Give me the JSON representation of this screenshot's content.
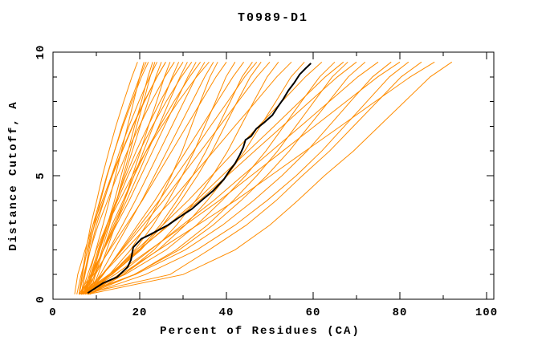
{
  "chart_data": {
    "type": "line",
    "title": "T0989-D1",
    "xlabel": "Percent of Residues (CA)",
    "ylabel": "Distance Cutoff, A",
    "xlim": [
      0,
      100
    ],
    "ylim": [
      0,
      10
    ],
    "grid": false,
    "legend": "none",
    "x_major_ticks": [
      0,
      20,
      40,
      60,
      80,
      100
    ],
    "x_minor_ticks": [
      10,
      30,
      50,
      70,
      90
    ],
    "y_major_ticks": [
      0,
      5,
      10
    ],
    "y_minor_ticks": [
      1,
      2,
      3,
      4,
      6,
      7,
      8,
      9
    ],
    "colors": {
      "model_lines": "#ff8c00",
      "highlight_line": "#000000",
      "frame": "#000000"
    },
    "cutoffs": [
      0.2,
      1,
      2,
      3,
      4,
      5,
      6,
      7,
      8,
      9,
      9.6
    ],
    "highlight_series": {
      "name": "selected-model",
      "points": [
        [
          8,
          0.25
        ],
        [
          11.5,
          0.65
        ],
        [
          14.8,
          0.9
        ],
        [
          17.2,
          1.3
        ],
        [
          18,
          1.6
        ],
        [
          18.5,
          2.1
        ],
        [
          20.4,
          2.45
        ],
        [
          22.2,
          2.6
        ],
        [
          26.5,
          3.0
        ],
        [
          29,
          3.3
        ],
        [
          32,
          3.65
        ],
        [
          34.6,
          4.05
        ],
        [
          37,
          4.4
        ],
        [
          39.4,
          4.85
        ],
        [
          40.7,
          5.2
        ],
        [
          42,
          5.5
        ],
        [
          43.1,
          5.85
        ],
        [
          43.9,
          6.15
        ],
        [
          44.4,
          6.45
        ],
        [
          45.7,
          6.6
        ],
        [
          46.9,
          6.9
        ],
        [
          48.7,
          7.15
        ],
        [
          50.6,
          7.45
        ],
        [
          51.9,
          7.8
        ],
        [
          53.1,
          8.1
        ],
        [
          54.3,
          8.45
        ],
        [
          55.6,
          8.75
        ],
        [
          56.9,
          9.1
        ],
        [
          58.3,
          9.35
        ],
        [
          59.5,
          9.55
        ]
      ]
    },
    "series": [
      {
        "xs": [
          6,
          6.7,
          7.6,
          8.7,
          10.1,
          11.4,
          12.9,
          14.5,
          16.3,
          18.2,
          19.5
        ]
      },
      {
        "xs": [
          5,
          5.7,
          7.4,
          9.2,
          11.4,
          13.5,
          15.9,
          18.3,
          21,
          24,
          26
        ]
      },
      {
        "xs": [
          6.5,
          7.3,
          8.3,
          9.5,
          11,
          12.5,
          14.2,
          15.9,
          17.9,
          20,
          21.5
        ]
      },
      {
        "xs": [
          7,
          8.4,
          9.9,
          11.5,
          13,
          14.4,
          15.8,
          17.2,
          18.6,
          20,
          21
        ]
      },
      {
        "xs": [
          6,
          6.8,
          7.9,
          9.2,
          10.8,
          12.4,
          14.2,
          16.1,
          18.2,
          20.4,
          22
        ]
      },
      {
        "xs": [
          7.5,
          9.1,
          10.8,
          12.5,
          14.2,
          15.7,
          17.3,
          18.8,
          20.4,
          21.9,
          23
        ]
      },
      {
        "xs": [
          8,
          9.6,
          11.3,
          13,
          14.7,
          16.2,
          17.8,
          19.3,
          20.9,
          22.4,
          23.5
        ]
      },
      {
        "xs": [
          6.5,
          7.4,
          8.6,
          10,
          11.8,
          13.5,
          15.4,
          17.5,
          19.8,
          22.3,
          24
        ]
      },
      {
        "xs": [
          7,
          8.8,
          10.8,
          12.8,
          14.7,
          16.5,
          18.3,
          20.1,
          21.9,
          23.7,
          25
        ]
      },
      {
        "xs": [
          5.5,
          6.5,
          8,
          9.6,
          11.7,
          13.7,
          16,
          18.4,
          21.1,
          24,
          26
        ]
      },
      {
        "xs": [
          8.5,
          10.4,
          12.4,
          14.4,
          16.5,
          18.3,
          20.2,
          22,
          23.9,
          25.7,
          27
        ]
      },
      {
        "xs": [
          6,
          7.1,
          8.6,
          10.4,
          12.6,
          14.8,
          17.2,
          19.9,
          22.7,
          25.8,
          28
        ]
      },
      {
        "xs": [
          7,
          9.2,
          11.6,
          14,
          16.5,
          18.7,
          20.9,
          23.1,
          25.3,
          27.5,
          29
        ]
      },
      {
        "xs": [
          8,
          9.1,
          10.6,
          12.4,
          14.6,
          16.8,
          19.2,
          21.9,
          24.7,
          27.8,
          30
        ]
      },
      {
        "xs": [
          6.5,
          9,
          11.6,
          14.3,
          17,
          19.5,
          21.9,
          24.4,
          26.8,
          29.3,
          31
        ]
      },
      {
        "xs": [
          7.5,
          8.7,
          10.4,
          12.4,
          14.9,
          17.3,
          20,
          22.9,
          26.1,
          29.6,
          32
        ]
      },
      {
        "xs": [
          6,
          8.7,
          11.7,
          14.6,
          17.6,
          20.3,
          23,
          25.7,
          28.4,
          31.1,
          33
        ]
      },
      {
        "xs": [
          8.5,
          9.8,
          11.6,
          13.6,
          16.2,
          18.7,
          21.5,
          24.6,
          27.9,
          31.5,
          34
        ]
      },
      {
        "xs": [
          7,
          9.8,
          12.9,
          16,
          19,
          21.8,
          24.6,
          27.4,
          30.2,
          33,
          35
        ]
      },
      {
        "xs": [
          6.5,
          8,
          10,
          12.4,
          15.4,
          18.3,
          21.5,
          25.1,
          28.9,
          33.1,
          36
        ]
      },
      {
        "xs": [
          8,
          10.9,
          14.1,
          17.3,
          20.5,
          23.4,
          26.3,
          29.2,
          32.1,
          35,
          37
        ]
      },
      {
        "xs": [
          7.5,
          13,
          17.9,
          21.5,
          24.6,
          27.3,
          29.8,
          31.9,
          34,
          36.2,
          38
        ]
      },
      {
        "xs": [
          6,
          9.4,
          13.1,
          16.9,
          20.6,
          24,
          27.4,
          30.8,
          34.2,
          37.6,
          40
        ]
      },
      {
        "xs": [
          7,
          13.3,
          18.9,
          23.1,
          26.6,
          29.8,
          32.6,
          35,
          37.5,
          39.9,
          42
        ]
      },
      {
        "xs": [
          8,
          11.6,
          15.6,
          19.5,
          23.5,
          27.1,
          30.7,
          34.3,
          37.9,
          41.5,
          44
        ]
      },
      {
        "xs": [
          6.5,
          13.6,
          19.9,
          24.7,
          28.6,
          32.2,
          35.3,
          38.1,
          40.9,
          43.6,
          46
        ]
      },
      {
        "xs": [
          7.5,
          11.5,
          15.8,
          20.1,
          24.5,
          28.4,
          32.4,
          36.3,
          40.3,
          44.2,
          47
        ]
      },
      {
        "xs": [
          6,
          13.6,
          20.3,
          25.3,
          29.5,
          33.3,
          36.7,
          39.6,
          42.5,
          45.5,
          48
        ]
      },
      {
        "xs": [
          7,
          11.3,
          16,
          20.8,
          25.5,
          29.8,
          34.1,
          38.4,
          42.7,
          47,
          50
        ]
      },
      {
        "xs": [
          8.5,
          16.3,
          23.3,
          28.5,
          32.9,
          36.8,
          40.3,
          43.3,
          46.3,
          49.4,
          52
        ]
      },
      {
        "xs": [
          6.5,
          11.4,
          16.7,
          22,
          27.4,
          32.2,
          37.1,
          41.9,
          46.8,
          51.6,
          55
        ]
      },
      {
        "xs": [
          7,
          16.2,
          24.3,
          30.5,
          35.6,
          40.2,
          44.2,
          47.8,
          51.4,
          54.9,
          58
        ]
      },
      {
        "xs": [
          8,
          13.4,
          19.3,
          25.3,
          31.2,
          36.6,
          42,
          47.4,
          52.8,
          58.2,
          62
        ]
      },
      {
        "xs": [
          6,
          16.6,
          26.1,
          33.1,
          39,
          44.4,
          49.1,
          53.2,
          57.3,
          61.5,
          65
        ]
      },
      {
        "xs": [
          7.5,
          13.5,
          20,
          26.5,
          33.1,
          39,
          45,
          51,
          56.9,
          62.8,
          67
        ]
      },
      {
        "xs": [
          8,
          18.8,
          28.4,
          35.6,
          41.6,
          47,
          51.8,
          56,
          60.2,
          64.4,
          68
        ]
      },
      {
        "xs": [
          6.5,
          12.9,
          19.8,
          26.8,
          33.8,
          40.2,
          46.5,
          52.9,
          59.2,
          65.6,
          70
        ]
      },
      {
        "xs": [
          7,
          18.7,
          29.1,
          36.9,
          43.4,
          49.3,
          54.5,
          59,
          63.6,
          68.1,
          72
        ]
      },
      {
        "xs": [
          8.5,
          15.2,
          22.5,
          29.8,
          37.1,
          43.7,
          50.4,
          57.1,
          63.7,
          70.3,
          75
        ]
      },
      {
        "xs": [
          6,
          19,
          30.5,
          39.1,
          46.3,
          52.8,
          58.6,
          63.6,
          68.6,
          73.7,
          78
        ]
      },
      {
        "xs": [
          7,
          14.3,
          22.3,
          30.4,
          38.4,
          45.7,
          53,
          60.3,
          67.6,
          74.9,
          80
        ]
      },
      {
        "xs": [
          8,
          21.3,
          33.2,
          42,
          49.4,
          56.1,
          62,
          67.2,
          72.4,
          77.6,
          82
        ]
      },
      {
        "xs": [
          6.5,
          27,
          36,
          44.6,
          51.5,
          57.5,
          63.8,
          69.3,
          74.8,
          80.3,
          85
        ]
      },
      {
        "xs": [
          7.5,
          15.6,
          24.4,
          33.3,
          42.1,
          50.2,
          58.2,
          66.3,
          74.3,
          82.4,
          88
        ]
      },
      {
        "xs": [
          8,
          30,
          42,
          50,
          56.5,
          62.6,
          69.3,
          75.2,
          81.1,
          87,
          92
        ]
      }
    ]
  }
}
